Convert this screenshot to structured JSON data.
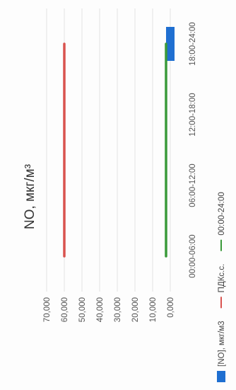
{
  "chart_data": {
    "type": "bar",
    "orientation": "rotated-90-ccw",
    "title": "NO, мкг/м³",
    "categories": [
      "00:00-06:00",
      "06:00-12:00",
      "12:00-18:00",
      "18:00-24:00"
    ],
    "ylim": [
      0,
      70000
    ],
    "y_ticks": [
      "0,000",
      "10,000",
      "20,000",
      "30,000",
      "40,000",
      "50,000",
      "60,000",
      "70,000"
    ],
    "y_tick_values": [
      0,
      10000,
      20000,
      30000,
      40000,
      50000,
      60000,
      70000
    ],
    "grid": true,
    "legend_position": "bottom",
    "series": [
      {
        "name": "[NO], мкг/м3",
        "kind": "bar",
        "color": "#1f6fd1",
        "values": [
          null,
          null,
          null,
          2400
        ]
      },
      {
        "name": "ПДКс.с.",
        "kind": "line",
        "color": "#d9534f",
        "values": [
          60000,
          60000,
          60000,
          60000
        ]
      },
      {
        "name": "00:00-24:00",
        "kind": "line",
        "color": "#3a9a3a",
        "values": [
          2400,
          2400,
          2400,
          2400
        ]
      }
    ]
  }
}
